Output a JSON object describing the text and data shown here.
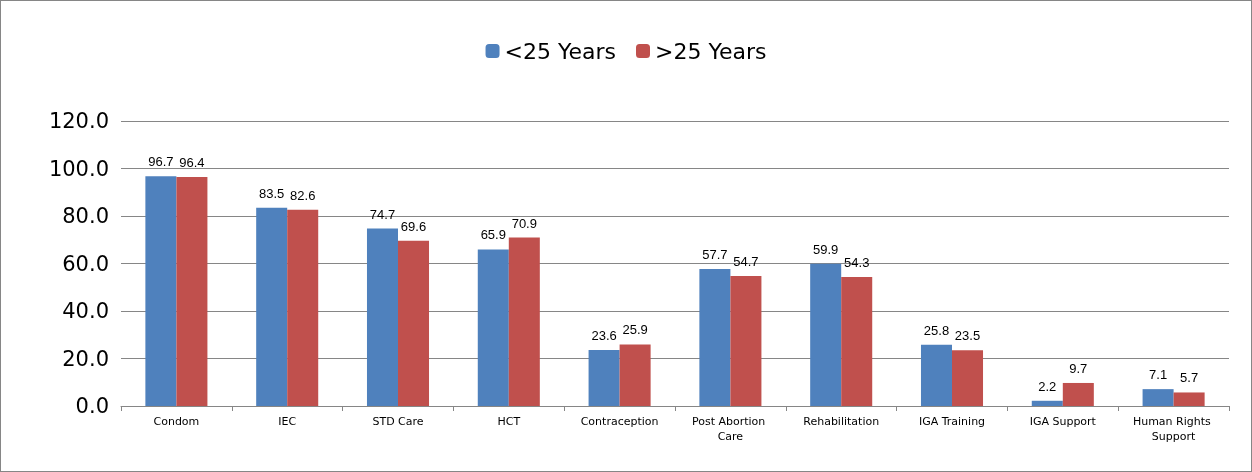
{
  "chart_data": {
    "type": "bar",
    "categories": [
      "Condom",
      "IEC",
      "STD Care",
      "HCT",
      "Contraception",
      "Post Abortion Care",
      "Rehabilitation",
      "IGA Training",
      "IGA Support",
      "Human Rights Support"
    ],
    "series": [
      {
        "name": "<25 Years",
        "color": "#4f81bd",
        "values": [
          96.7,
          83.5,
          74.7,
          65.9,
          23.6,
          57.7,
          59.9,
          25.8,
          2.2,
          7.1
        ]
      },
      {
        "name": ">25 Years",
        "color": "#c0504d",
        "values": [
          96.4,
          82.6,
          69.6,
          70.9,
          25.9,
          54.7,
          54.3,
          23.5,
          9.7,
          5.7
        ]
      }
    ],
    "ylim": [
      0,
      120
    ],
    "yticks": [
      {
        "value": 0,
        "label": "0.0"
      },
      {
        "value": 20,
        "label": "20.0"
      },
      {
        "value": 40,
        "label": "40.0"
      },
      {
        "value": 60,
        "label": "60.0"
      },
      {
        "value": 80,
        "label": "80.0"
      },
      {
        "value": 100,
        "label": "100.0"
      },
      {
        "value": 120,
        "label": "120.0"
      }
    ],
    "grid": "y",
    "legend": "top",
    "data_labels": true
  }
}
